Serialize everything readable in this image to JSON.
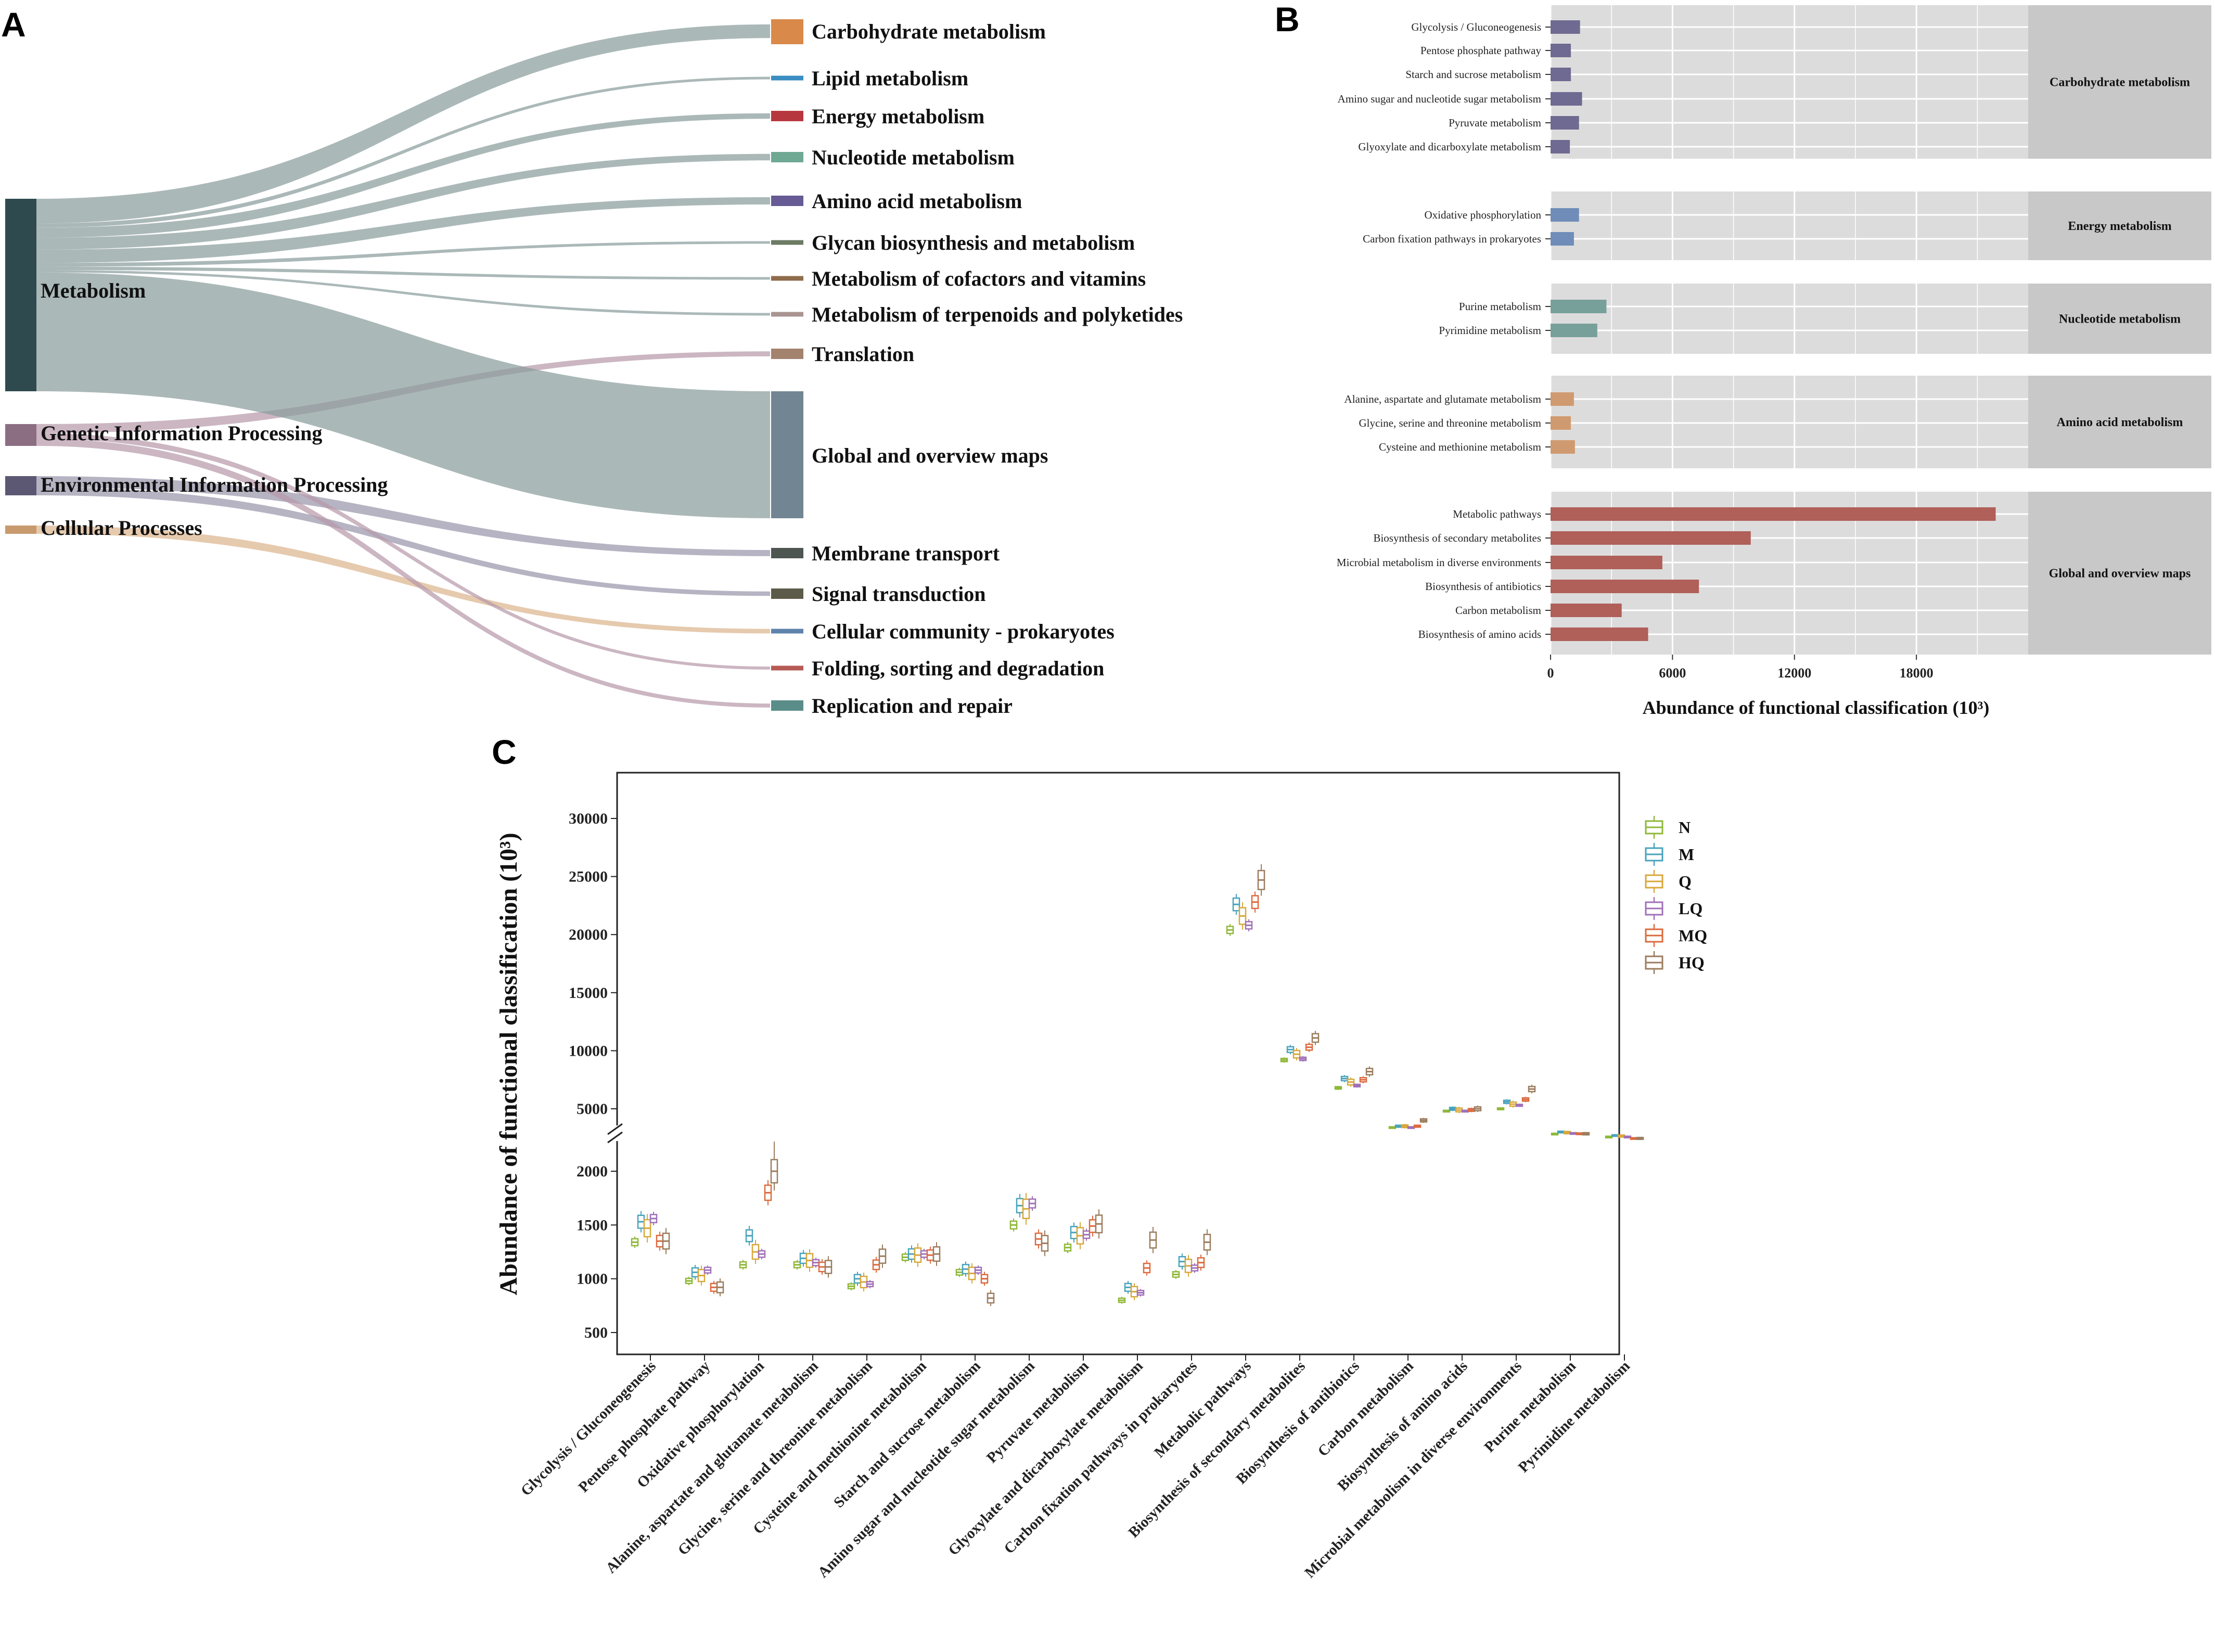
{
  "panels": {
    "a": "A",
    "b": "B",
    "c": "C"
  },
  "chart_data": [
    {
      "type": "sankey",
      "panel": "A",
      "sources": [
        {
          "name": "Metabolism",
          "color": "#2f4a4f"
        },
        {
          "name": "Genetic Information Processing",
          "color": "#8c6e83"
        },
        {
          "name": "Environmental Information Processing",
          "color": "#5c5873"
        },
        {
          "name": "Cellular Processes",
          "color": "#c89a6e"
        }
      ],
      "targets": [
        {
          "name": "Carbohydrate metabolism",
          "color": "#d9894a",
          "source": "Metabolism",
          "value": 5.2
        },
        {
          "name": "Lipid metabolism",
          "color": "#3a8dc1",
          "source": "Metabolism",
          "value": 0.9
        },
        {
          "name": "Energy metabolism",
          "color": "#b6383e",
          "source": "Metabolism",
          "value": 2.1
        },
        {
          "name": "Nucleotide metabolism",
          "color": "#6fa893",
          "source": "Metabolism",
          "value": 2.5
        },
        {
          "name": "Amino acid metabolism",
          "color": "#665b94",
          "source": "Metabolism",
          "value": 2.8
        },
        {
          "name": "Glycan biosynthesis and metabolism",
          "color": "#6c7b63",
          "source": "Metabolism",
          "value": 0.8
        },
        {
          "name": "Metabolism of cofactors and vitamins",
          "color": "#8e6c4c",
          "source": "Metabolism",
          "value": 0.7
        },
        {
          "name": "Metabolism of terpenoids and polyketides",
          "color": "#a99491",
          "source": "Metabolism",
          "value": 0.5
        },
        {
          "name": "Translation",
          "color": "#a3826e",
          "source": "Genetic Information Processing",
          "value": 2.0
        },
        {
          "name": "Global and overview maps",
          "color": "#728593",
          "source": "Metabolism",
          "value": 25.0
        },
        {
          "name": "Membrane transport",
          "color": "#4d5651",
          "source": "Environmental Information Processing",
          "value": 2.2
        },
        {
          "name": "Signal transduction",
          "color": "#5c5b49",
          "source": "Environmental Information Processing",
          "value": 1.6
        },
        {
          "name": "Cellular community - prokaryotes",
          "color": "#5f83ad",
          "source": "Cellular Processes",
          "value": 1.0
        },
        {
          "name": "Folding, sorting and degradation",
          "color": "#b65a55",
          "source": "Genetic Information Processing",
          "value": 1.2
        },
        {
          "name": "Replication and repair",
          "color": "#5a8d8a",
          "source": "Genetic Information Processing",
          "value": 1.6
        }
      ]
    },
    {
      "type": "bar",
      "panel": "B",
      "orientation": "horizontal",
      "xlabel": "Abundance of functional classification (10³)",
      "xlim": [
        0,
        23500
      ],
      "xticks": [
        0,
        6000,
        12000,
        18000
      ],
      "groups": [
        {
          "name": "Carbohydrate metabolism",
          "color": "#6e6a91",
          "categories": [
            "Glycolysis / Gluconeogenesis",
            "Pentose phosphate pathway",
            "Starch and sucrose metabolism",
            "Amino sugar and nucleotide sugar metabolism",
            "Pyruvate metabolism",
            "Glyoxylate and dicarboxylate metabolism"
          ],
          "values": [
            1450,
            1000,
            1000,
            1550,
            1400,
            950
          ]
        },
        {
          "name": "Energy metabolism",
          "color": "#6f8db8",
          "categories": [
            "Oxidative phosphorylation",
            "Carbon fixation pathways in prokaryotes"
          ],
          "values": [
            1400,
            1150
          ]
        },
        {
          "name": "Nucleotide metabolism",
          "color": "#77a09b",
          "categories": [
            "Purine metabolism",
            "Pyrimidine metabolism"
          ],
          "values": [
            2750,
            2300
          ]
        },
        {
          "name": "Amino acid metabolism",
          "color": "#d09a70",
          "categories": [
            "Alanine, aspartate and glutamate metabolism",
            "Glycine, serine and threonine metabolism",
            "Cysteine and methionine metabolism"
          ],
          "values": [
            1150,
            1000,
            1200
          ]
        },
        {
          "name": "Global and overview maps",
          "color": "#b05f59",
          "categories": [
            "Metabolic pathways",
            "Biosynthesis of secondary metabolites",
            "Microbial metabolism in diverse environments",
            "Biosynthesis of antibiotics",
            "Carbon metabolism",
            "Biosynthesis of amino acids"
          ],
          "values": [
            21900,
            9850,
            5500,
            7300,
            3500,
            4800
          ]
        }
      ]
    },
    {
      "type": "boxplot",
      "panel": "C",
      "ylabel": "Abundance of functional classification (10³)",
      "yticks_lower": [
        500,
        1000,
        1500,
        2000
      ],
      "yticks_upper": [
        5000,
        10000,
        15000,
        20000,
        25000,
        30000
      ],
      "y_break": [
        2150,
        4000
      ],
      "series": [
        {
          "name": "N",
          "color": "#8fb838"
        },
        {
          "name": "M",
          "color": "#48a3bd"
        },
        {
          "name": "Q",
          "color": "#d8a83a"
        },
        {
          "name": "LQ",
          "color": "#a070b8"
        },
        {
          "name": "MQ",
          "color": "#dc6a3e"
        },
        {
          "name": "HQ",
          "color": "#9b7d5f"
        }
      ],
      "categories": [
        {
          "name": "Glycolysis / Gluconeogenesis",
          "medians": [
            1340,
            1530,
            1470,
            1560,
            1350,
            1350
          ]
        },
        {
          "name": "Pentose phosphate pathway",
          "medians": [
            980,
            1060,
            1030,
            1080,
            920,
            920
          ]
        },
        {
          "name": "Oxidative phosphorylation",
          "medians": [
            1130,
            1400,
            1250,
            1230,
            1800,
            2000
          ]
        },
        {
          "name": "Alanine, aspartate and glutamate metabolism",
          "medians": [
            1130,
            1190,
            1170,
            1150,
            1110,
            1110
          ]
        },
        {
          "name": "Glycine, serine and threonine metabolism",
          "medians": [
            930,
            1000,
            970,
            950,
            1130,
            1210
          ]
        },
        {
          "name": "Cysteine and methionine metabolism",
          "medians": [
            1200,
            1230,
            1220,
            1230,
            1220,
            1230
          ]
        },
        {
          "name": "Starch and sucrose metabolism",
          "medians": [
            1060,
            1090,
            1050,
            1080,
            1000,
            820
          ]
        },
        {
          "name": "Amino sugar and nucleotide sugar metabolism",
          "medians": [
            1500,
            1680,
            1650,
            1700,
            1370,
            1330
          ]
        },
        {
          "name": "Pyruvate metabolism",
          "medians": [
            1290,
            1430,
            1400,
            1410,
            1490,
            1510
          ]
        },
        {
          "name": "Glyoxylate and dicarboxylate metabolism",
          "medians": [
            800,
            920,
            880,
            870,
            1100,
            1360
          ]
        },
        {
          "name": "Carbon fixation pathways in prokaryotes",
          "medians": [
            1040,
            1160,
            1120,
            1100,
            1150,
            1340
          ]
        },
        {
          "name": "Metabolic pathways",
          "medians": [
            20400,
            22600,
            21600,
            20800,
            22800,
            24700
          ]
        },
        {
          "name": "Biosynthesis of secondary metabolites",
          "medians": [
            9200,
            10100,
            9700,
            9300,
            10300,
            11100
          ]
        },
        {
          "name": "Biosynthesis of antibiotics",
          "medians": [
            6800,
            7600,
            7300,
            7000,
            7500,
            8200
          ]
        },
        {
          "name": "Carbon metabolism",
          "medians": [
            3400,
            3500,
            3500,
            3400,
            3500,
            4000
          ]
        },
        {
          "name": "Biosynthesis of amino acids",
          "medians": [
            4800,
            5000,
            4900,
            4800,
            4900,
            5000
          ]
        },
        {
          "name": "Microbial metabolism in diverse environments",
          "medians": [
            5000,
            5600,
            5400,
            5300,
            5800,
            6700
          ]
        },
        {
          "name": "Purine metabolism",
          "medians": [
            2850,
            3000,
            2950,
            2900,
            2850,
            2850
          ]
        },
        {
          "name": "Pyrimidine metabolism",
          "medians": [
            2600,
            2700,
            2650,
            2600,
            2450,
            2450
          ]
        }
      ]
    }
  ]
}
